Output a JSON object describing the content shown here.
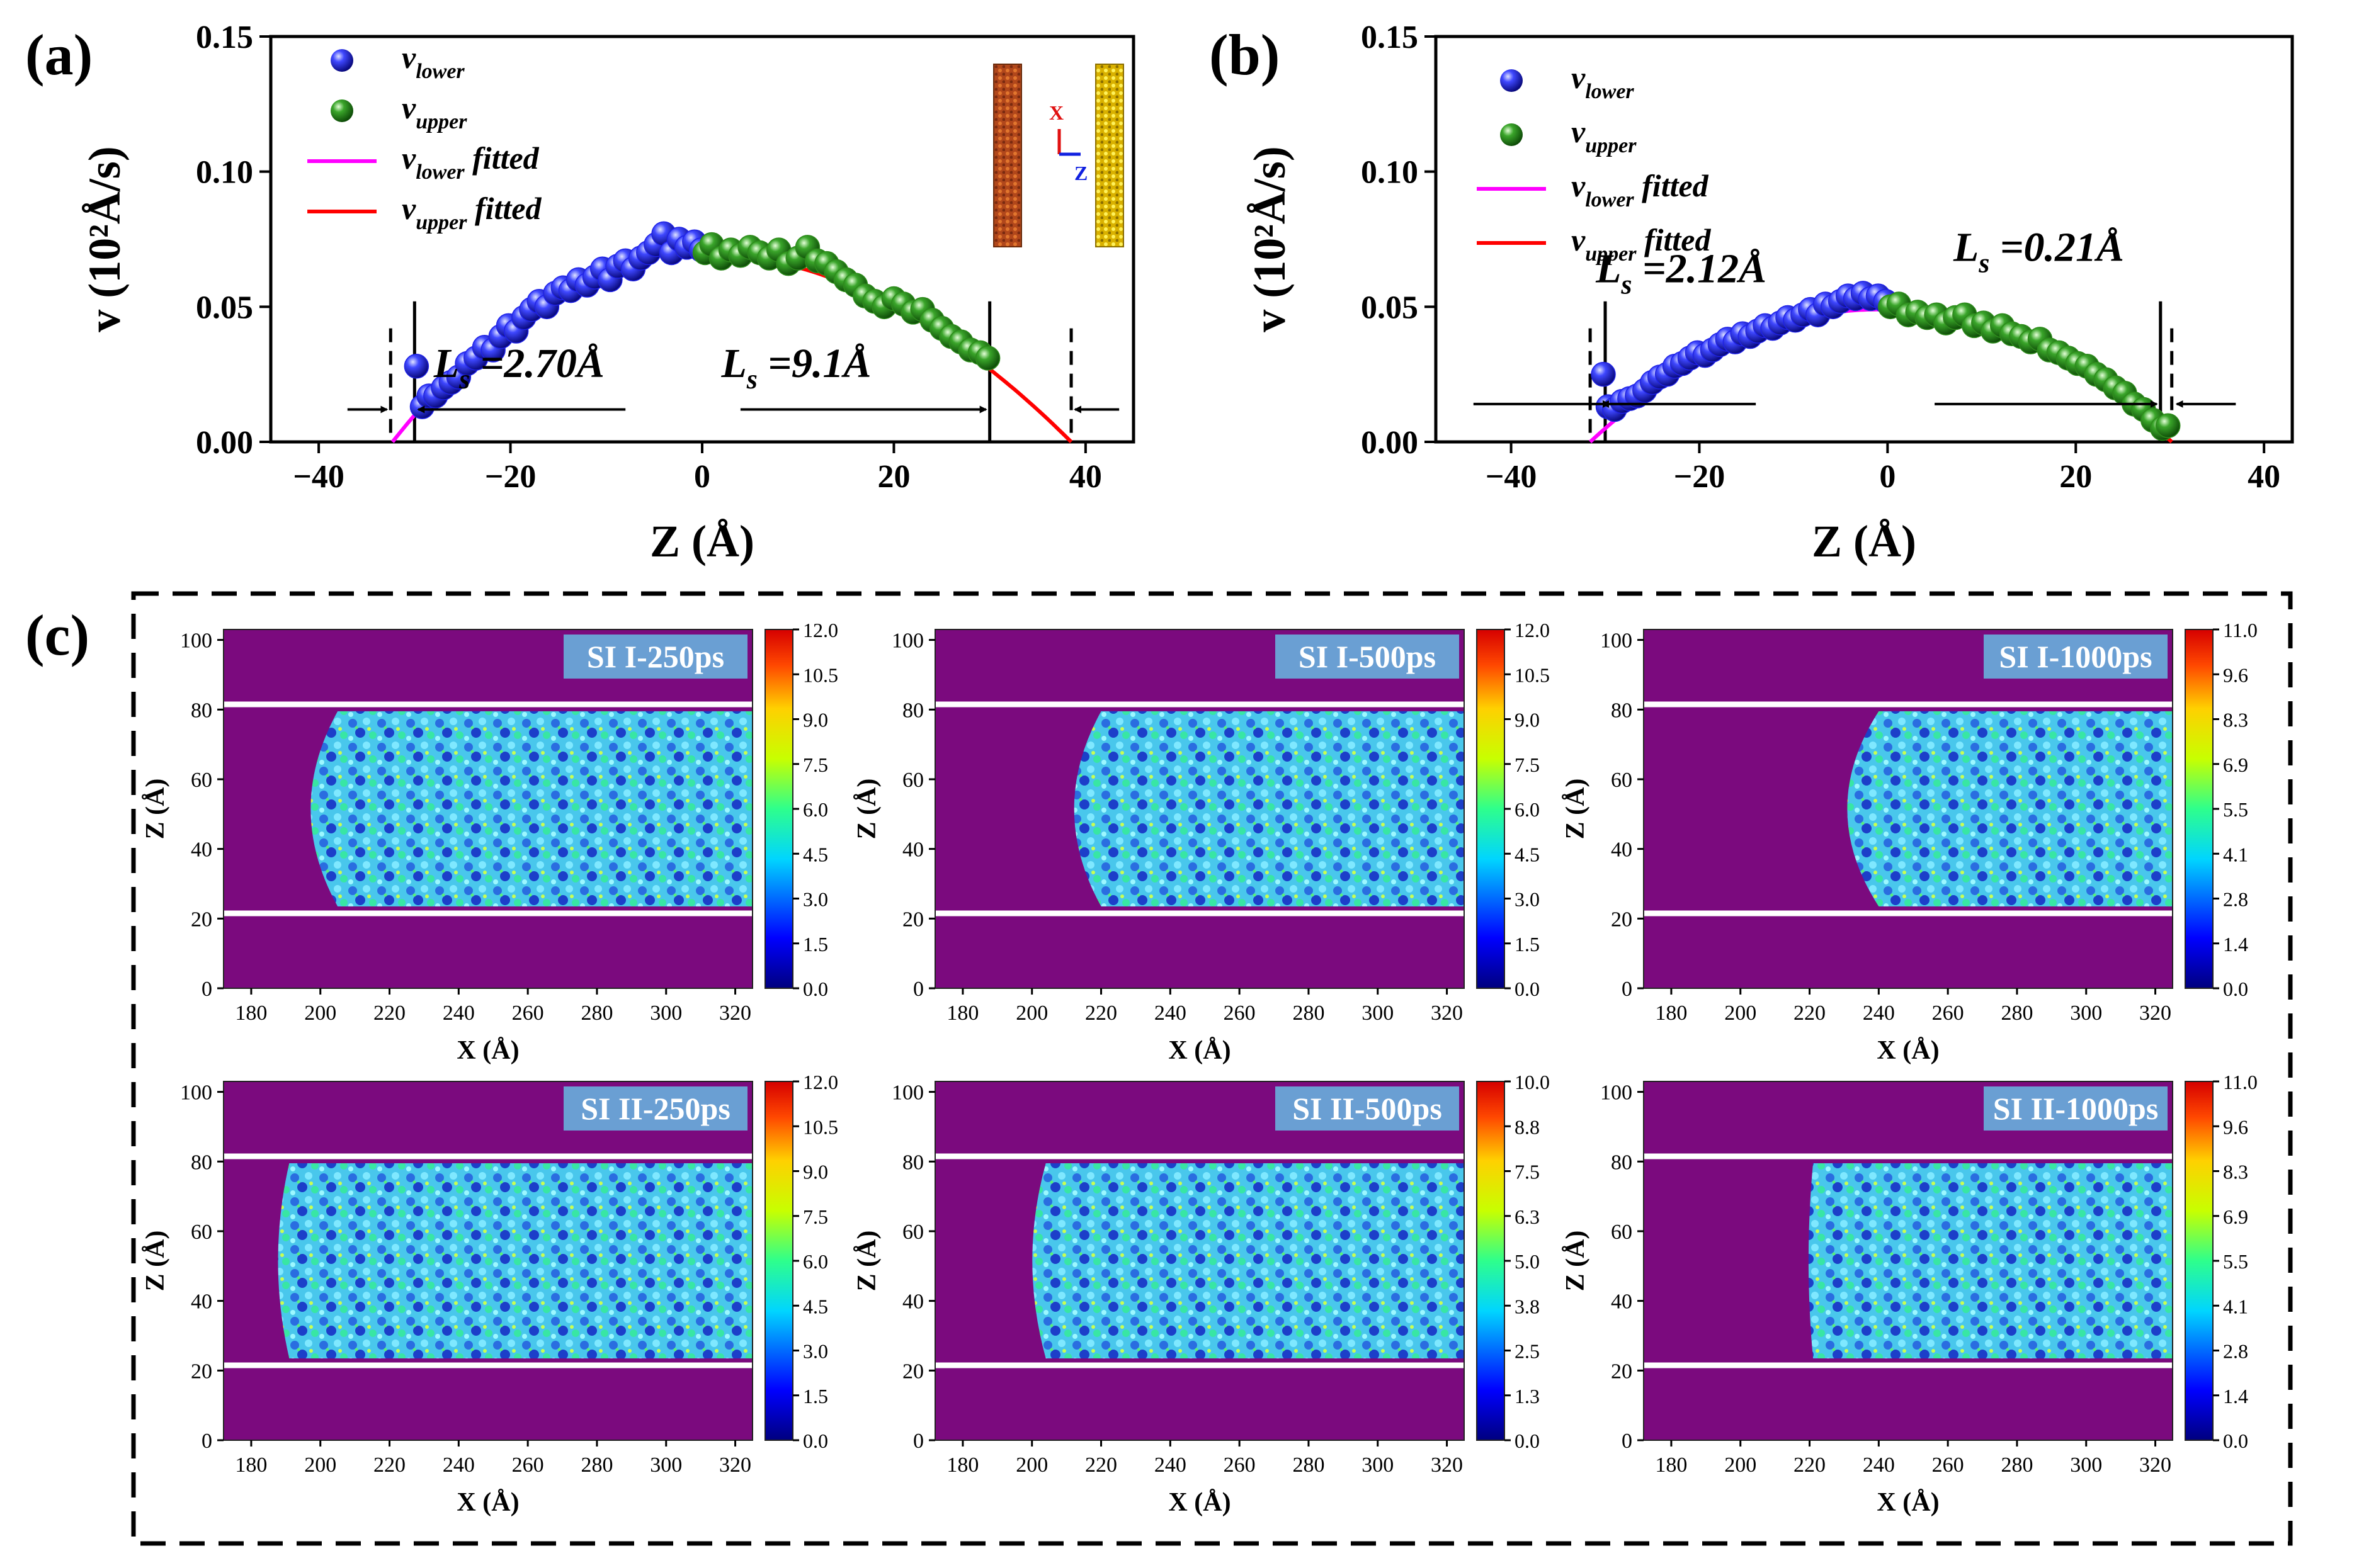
{
  "figure": {
    "panel_a_label": "(a)",
    "panel_b_label": "(b)",
    "panel_c_label": "(c)"
  },
  "colors": {
    "lower": "#1f22e6",
    "upper": "#2e8b1c",
    "lower_fit": "#ff00ff",
    "upper_fit": "#ff0000",
    "map_background": "#7b0a7e",
    "title_box": "#6a9fd3"
  },
  "chart_data": [
    {
      "id": "a",
      "type": "scatter",
      "title": "(a)",
      "xlabel": "Z (Å)",
      "ylabel": "v (10²Å/s)",
      "xlim": [
        -45,
        45
      ],
      "ylim": [
        0,
        0.15
      ],
      "xticks": [
        "−40",
        "−20",
        "0",
        "20",
        "40"
      ],
      "xtick_values": [
        -40,
        -20,
        0,
        20,
        40
      ],
      "yticks": [
        "0.00",
        "0.05",
        "0.10",
        "0.15"
      ],
      "ytick_values": [
        0,
        0.05,
        0.1,
        0.15
      ],
      "legend": [
        {
          "symbol": "sphere",
          "color": "#1f22e6",
          "base": "v",
          "sub": "lower",
          "suffix": ""
        },
        {
          "symbol": "sphere",
          "color": "#2e8b1c",
          "base": "v",
          "sub": "upper",
          "suffix": ""
        },
        {
          "symbol": "line",
          "color": "#ff00ff",
          "base": "v",
          "sub": "lower",
          "suffix": " fitted"
        },
        {
          "symbol": "line",
          "color": "#ff0000",
          "base": "v",
          "sub": "upper",
          "suffix": " fitted"
        }
      ],
      "fits": {
        "lower": {
          "vmax": 0.07,
          "center": -1,
          "zero": -32.3,
          "from": -32.3,
          "to": -1
        },
        "upper": {
          "vmax": 0.07,
          "center": -1,
          "zero": 38.5,
          "from": -1,
          "to": 38.5
        }
      },
      "series": [
        {
          "name": "v_lower",
          "color": "#1f22e6",
          "points": [
            [
              -29.8,
              0.028
            ],
            [
              -29.2,
              0.013
            ],
            [
              -28.5,
              0.017
            ],
            [
              -27.8,
              0.017
            ],
            [
              -27,
              0.02
            ],
            [
              -26.2,
              0.022
            ],
            [
              -25.4,
              0.024
            ],
            [
              -24.5,
              0.029
            ],
            [
              -23.6,
              0.031
            ],
            [
              -22.7,
              0.035
            ],
            [
              -21.8,
              0.034
            ],
            [
              -21,
              0.039
            ],
            [
              -20.2,
              0.043
            ],
            [
              -19.4,
              0.041
            ],
            [
              -18.6,
              0.046
            ],
            [
              -17.8,
              0.049
            ],
            [
              -17,
              0.052
            ],
            [
              -16.2,
              0.05
            ],
            [
              -15.3,
              0.055
            ],
            [
              -14.5,
              0.057
            ],
            [
              -13.7,
              0.056
            ],
            [
              -12.9,
              0.06
            ],
            [
              -12,
              0.058
            ],
            [
              -11.2,
              0.061
            ],
            [
              -10.4,
              0.064
            ],
            [
              -9.6,
              0.06
            ],
            [
              -8.8,
              0.065
            ],
            [
              -8,
              0.067
            ],
            [
              -7.2,
              0.064
            ],
            [
              -6.4,
              0.068
            ],
            [
              -5.6,
              0.07
            ],
            [
              -4.8,
              0.073
            ],
            [
              -4,
              0.077
            ],
            [
              -3.2,
              0.07
            ],
            [
              -2.4,
              0.075
            ],
            [
              -1.6,
              0.072
            ],
            [
              -0.8,
              0.074
            ],
            [
              -0.1,
              0.071
            ]
          ]
        },
        {
          "name": "v_upper",
          "color": "#2e8b1c",
          "points": [
            [
              0.3,
              0.07
            ],
            [
              1,
              0.073
            ],
            [
              2,
              0.068
            ],
            [
              3,
              0.071
            ],
            [
              4,
              0.069
            ],
            [
              5,
              0.072
            ],
            [
              6,
              0.07
            ],
            [
              7,
              0.068
            ],
            [
              8,
              0.071
            ],
            [
              9,
              0.066
            ],
            [
              10,
              0.068
            ],
            [
              11,
              0.072
            ],
            [
              12,
              0.067
            ],
            [
              13,
              0.066
            ],
            [
              14,
              0.063
            ],
            [
              15,
              0.06
            ],
            [
              16,
              0.058
            ],
            [
              17,
              0.054
            ],
            [
              18,
              0.052
            ],
            [
              19,
              0.05
            ],
            [
              20,
              0.053
            ],
            [
              21,
              0.051
            ],
            [
              22,
              0.048
            ],
            [
              23,
              0.049
            ],
            [
              24,
              0.045
            ],
            [
              25,
              0.042
            ],
            [
              26,
              0.039
            ],
            [
              27,
              0.037
            ],
            [
              28,
              0.034
            ],
            [
              29,
              0.033
            ],
            [
              29.8,
              0.031
            ]
          ]
        }
      ],
      "annotations": {
        "ls_left": "=2.70Å",
        "ls_right": "=9.1Å",
        "inset_x": "X",
        "inset_z": "Z"
      },
      "walls": {
        "solid_left": -30,
        "solid_right": 30,
        "dashed_left": -32.5,
        "dashed_right": 38.5
      }
    },
    {
      "id": "b",
      "type": "scatter",
      "title": "(b)",
      "xlabel": "Z (Å)",
      "ylabel": "v (10²Å/s)",
      "xlim": [
        -48,
        43
      ],
      "ylim": [
        0,
        0.15
      ],
      "xticks": [
        "−40",
        "−20",
        "0",
        "20",
        "40"
      ],
      "xtick_values": [
        -40,
        -20,
        0,
        20,
        40
      ],
      "yticks": [
        "0.00",
        "0.05",
        "0.10",
        "0.15"
      ],
      "ytick_values": [
        0,
        0.05,
        0.1,
        0.15
      ],
      "legend": [
        {
          "symbol": "sphere",
          "color": "#1f22e6",
          "base": "v",
          "sub": "lower",
          "suffix": ""
        },
        {
          "symbol": "sphere",
          "color": "#2e8b1c",
          "base": "v",
          "sub": "upper",
          "suffix": ""
        },
        {
          "symbol": "line",
          "color": "#ff00ff",
          "base": "v",
          "sub": "lower",
          "suffix": " fitted"
        },
        {
          "symbol": "line",
          "color": "#ff0000",
          "base": "v",
          "sub": "upper",
          "suffix": " fitted"
        }
      ],
      "fits": {
        "lower": {
          "vmax": 0.049,
          "center": -1,
          "zero": -31.6,
          "from": -31.6,
          "to": -1
        },
        "upper": {
          "vmax": 0.049,
          "center": -1,
          "zero": 30.2,
          "from": -1,
          "to": 30.2
        }
      },
      "series": [
        {
          "name": "v_lower",
          "color": "#1f22e6",
          "points": [
            [
              -30.2,
              0.025
            ],
            [
              -29.7,
              0.013
            ],
            [
              -29,
              0.012
            ],
            [
              -28.2,
              0.015
            ],
            [
              -27.4,
              0.016
            ],
            [
              -26.6,
              0.017
            ],
            [
              -25.8,
              0.019
            ],
            [
              -25,
              0.022
            ],
            [
              -24.2,
              0.024
            ],
            [
              -23.4,
              0.025
            ],
            [
              -22.6,
              0.028
            ],
            [
              -21.8,
              0.029
            ],
            [
              -21,
              0.031
            ],
            [
              -20.2,
              0.033
            ],
            [
              -19.4,
              0.032
            ],
            [
              -18.6,
              0.034
            ],
            [
              -17.8,
              0.036
            ],
            [
              -17,
              0.038
            ],
            [
              -16.2,
              0.037
            ],
            [
              -15.4,
              0.04
            ],
            [
              -14.6,
              0.039
            ],
            [
              -13.8,
              0.041
            ],
            [
              -13,
              0.043
            ],
            [
              -12.2,
              0.042
            ],
            [
              -11.4,
              0.044
            ],
            [
              -10.6,
              0.046
            ],
            [
              -9.8,
              0.045
            ],
            [
              -9,
              0.047
            ],
            [
              -8.2,
              0.049
            ],
            [
              -7.4,
              0.047
            ],
            [
              -6.6,
              0.051
            ],
            [
              -5.8,
              0.05
            ],
            [
              -5,
              0.052
            ],
            [
              -4.2,
              0.054
            ],
            [
              -3.4,
              0.053
            ],
            [
              -2.6,
              0.055
            ],
            [
              -1.8,
              0.053
            ],
            [
              -1,
              0.054
            ],
            [
              -0.2,
              0.052
            ]
          ]
        },
        {
          "name": "v_upper",
          "color": "#2e8b1c",
          "points": [
            [
              0.3,
              0.05
            ],
            [
              1.2,
              0.051
            ],
            [
              2.2,
              0.047
            ],
            [
              3.2,
              0.048
            ],
            [
              4.2,
              0.046
            ],
            [
              5.2,
              0.047
            ],
            [
              6.2,
              0.044
            ],
            [
              7.2,
              0.046
            ],
            [
              8.2,
              0.047
            ],
            [
              9.2,
              0.043
            ],
            [
              10.2,
              0.044
            ],
            [
              11.2,
              0.041
            ],
            [
              12.2,
              0.043
            ],
            [
              13.2,
              0.04
            ],
            [
              14.2,
              0.039
            ],
            [
              15.2,
              0.037
            ],
            [
              16.2,
              0.038
            ],
            [
              17.2,
              0.034
            ],
            [
              18.2,
              0.033
            ],
            [
              19.2,
              0.031
            ],
            [
              20.2,
              0.029
            ],
            [
              21.2,
              0.028
            ],
            [
              22.2,
              0.025
            ],
            [
              23.2,
              0.023
            ],
            [
              24.2,
              0.02
            ],
            [
              25.2,
              0.018
            ],
            [
              26.2,
              0.014
            ],
            [
              27.2,
              0.012
            ],
            [
              28.2,
              0.008
            ],
            [
              29.2,
              0.005
            ],
            [
              29.8,
              0.006
            ]
          ]
        }
      ],
      "annotations": {
        "ls_left": "=2.12Å",
        "ls_right": "=0.21Å"
      },
      "walls": {
        "solid_left": -30,
        "solid_right": 29,
        "dashed_left": -31.6,
        "dashed_right": 30.2
      }
    },
    {
      "id": "c",
      "type": "heatmap",
      "title": "(c)",
      "xlabel": "X (Å)",
      "ylabel": "Z (Å)",
      "xlim": [
        172,
        325
      ],
      "ylim": [
        0,
        103
      ],
      "xticks": [
        "180",
        "200",
        "220",
        "240",
        "260",
        "280",
        "300",
        "320"
      ],
      "xtick_values": [
        180,
        200,
        220,
        240,
        260,
        280,
        300,
        320
      ],
      "yticks": [
        "0",
        "20",
        "40",
        "60",
        "80",
        "100"
      ],
      "ytick_values": [
        0,
        20,
        40,
        60,
        80,
        100
      ],
      "maps": [
        {
          "title": "SI I-250ps",
          "front": 193,
          "curve": 12,
          "wall_low": 21.5,
          "wall_high": 81.5,
          "cb": [
            "12.0",
            "10.5",
            "9.0",
            "7.5",
            "6.0",
            "4.5",
            "3.0",
            "1.5",
            "0.0"
          ]
        },
        {
          "title": "SI I-500ps",
          "front": 208,
          "curve": 12,
          "wall_low": 21.5,
          "wall_high": 81.5,
          "cb": [
            "12.0",
            "10.5",
            "9.0",
            "7.5",
            "6.0",
            "4.5",
            "3.0",
            "1.5",
            "0.0"
          ]
        },
        {
          "title": "SI I-1000ps",
          "front": 226,
          "curve": 14,
          "wall_low": 21.5,
          "wall_high": 81.5,
          "cb": [
            "11.0",
            "9.6",
            "8.3",
            "6.9",
            "5.5",
            "4.1",
            "2.8",
            "1.4",
            "0.0"
          ]
        },
        {
          "title": "SI II-250ps",
          "front": 186,
          "curve": 5,
          "wall_low": 21.5,
          "wall_high": 81.5,
          "cb": [
            "12.0",
            "10.5",
            "9.0",
            "7.5",
            "6.0",
            "4.5",
            "3.0",
            "1.5",
            "0.0"
          ]
        },
        {
          "title": "SI II-500ps",
          "front": 198,
          "curve": 6,
          "wall_low": 21.5,
          "wall_high": 81.5,
          "cb": [
            "10.0",
            "8.8",
            "7.5",
            "6.3",
            "5.0",
            "3.8",
            "2.5",
            "1.3",
            "0.0"
          ]
        },
        {
          "title": "SI II-1000ps",
          "front": 219,
          "curve": 2,
          "wall_low": 21.5,
          "wall_high": 81.5,
          "cb": [
            "11.0",
            "9.6",
            "8.3",
            "6.9",
            "5.5",
            "4.1",
            "2.8",
            "1.4",
            "0.0"
          ]
        }
      ]
    }
  ]
}
